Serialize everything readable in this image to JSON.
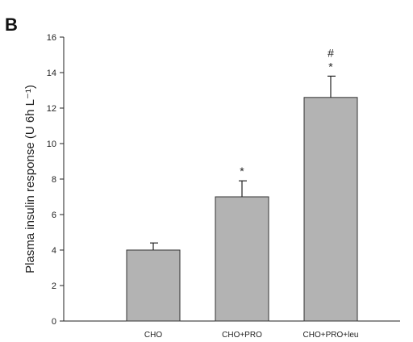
{
  "panel_label": "B",
  "chart_data": {
    "type": "bar",
    "categories": [
      "CHO",
      "CHO+PRO",
      "CHO+PRO+leu"
    ],
    "values": [
      4.0,
      7.0,
      12.6
    ],
    "errors": [
      0.4,
      0.9,
      1.2
    ],
    "annotations": [
      "",
      "*",
      "*\n#"
    ],
    "ylabel": "Plasma insulin response (U 6h L⁻¹)",
    "ylim": [
      0,
      16
    ],
    "yticks": [
      0,
      2,
      4,
      6,
      8,
      10,
      12,
      14,
      16
    ],
    "grid": false,
    "bar_color": "#b3b3b3",
    "bar_edge_color": "#333333"
  }
}
